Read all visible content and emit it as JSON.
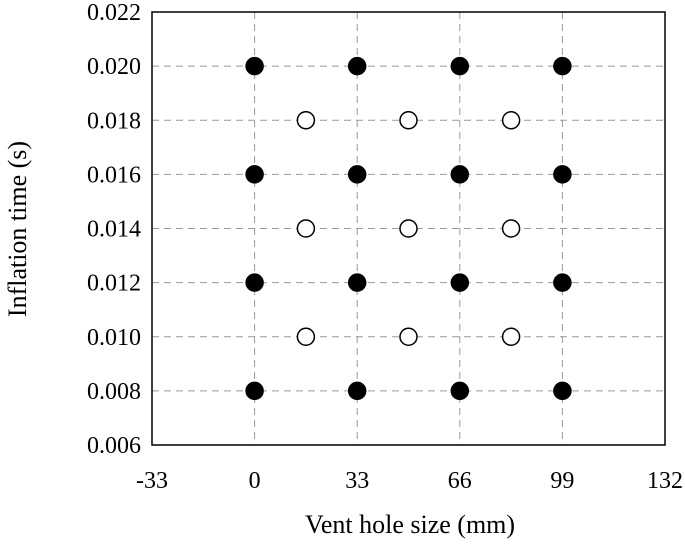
{
  "chart_data": {
    "type": "scatter",
    "title": "",
    "xlabel": "Vent hole size (mm)",
    "ylabel": "Inflation time (s)",
    "xlim": [
      -33,
      132
    ],
    "ylim": [
      0.006,
      0.022
    ],
    "xticks": [
      "-33",
      "0",
      "33",
      "66",
      "99",
      "132"
    ],
    "yticks": [
      "0.006",
      "0.008",
      "0.010",
      "0.012",
      "0.014",
      "0.016",
      "0.018",
      "0.020",
      "0.022"
    ],
    "grid": true,
    "legend": "none",
    "series": [
      {
        "marker": "filled-circle",
        "color": "#000000",
        "points": [
          [
            0,
            0.02
          ],
          [
            33,
            0.02
          ],
          [
            66,
            0.02
          ],
          [
            99,
            0.02
          ],
          [
            0,
            0.016
          ],
          [
            33,
            0.016
          ],
          [
            66,
            0.016
          ],
          [
            99,
            0.016
          ],
          [
            0,
            0.012
          ],
          [
            33,
            0.012
          ],
          [
            66,
            0.012
          ],
          [
            99,
            0.012
          ],
          [
            0,
            0.008
          ],
          [
            33,
            0.008
          ],
          [
            66,
            0.008
          ],
          [
            99,
            0.008
          ]
        ]
      },
      {
        "marker": "open-circle",
        "color": "#000000",
        "points": [
          [
            16.5,
            0.018
          ],
          [
            49.5,
            0.018
          ],
          [
            82.5,
            0.018
          ],
          [
            16.5,
            0.014
          ],
          [
            49.5,
            0.014
          ],
          [
            82.5,
            0.014
          ],
          [
            16.5,
            0.01
          ],
          [
            49.5,
            0.01
          ],
          [
            82.5,
            0.01
          ]
        ]
      }
    ]
  }
}
